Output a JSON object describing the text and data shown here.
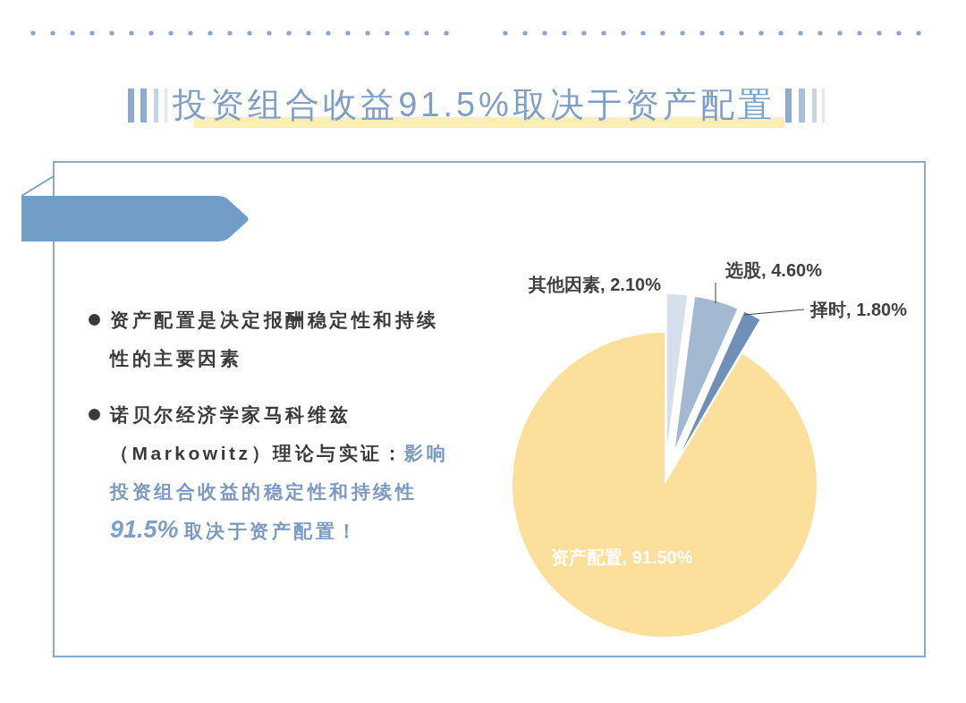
{
  "chart_data": {
    "type": "pie",
    "title": "投资组合收益91.5%取决于资产配置",
    "categories": [
      "其他因素",
      "选股",
      "择时",
      "资产配置"
    ],
    "values": [
      2.1,
      4.6,
      1.8,
      91.5
    ],
    "colors": [
      "#d6e0ec",
      "#a3b8d1",
      "#7090b8",
      "#fddf9c"
    ],
    "value_labels": [
      "2.10%",
      "4.60%",
      "1.80%",
      "91.50%"
    ],
    "annotations": [
      "资产配置是决定报酬稳定性和持续性的主要因素",
      "诺贝尔经济学家马科维兹（Markowitz）理论与实证：",
      "影响",
      "投资组合收益的稳定性和持续性",
      "91.5%",
      "取决于资产配置！"
    ]
  }
}
